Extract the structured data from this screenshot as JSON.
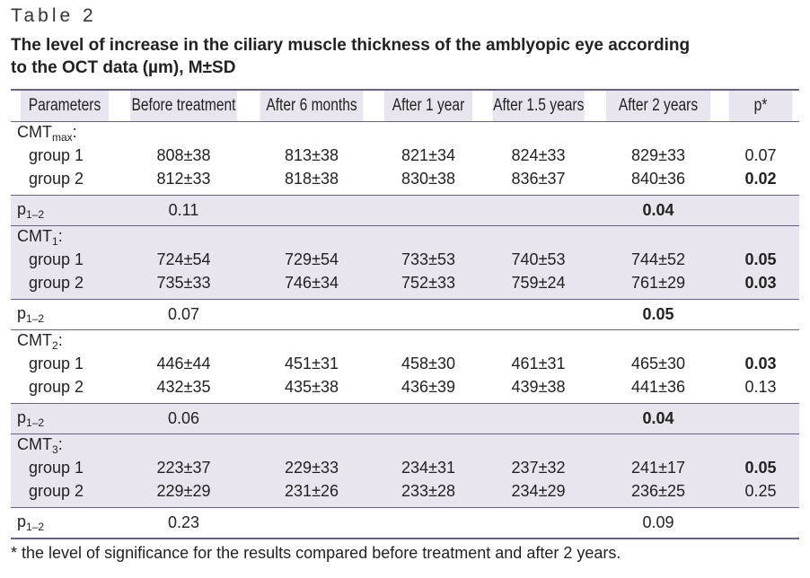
{
  "table_label": "Table 2",
  "caption_line1": "The level of increase in the ciliary muscle thickness of the amblyopic eye according",
  "caption_line2": "to the OCT data (µm), M±SD",
  "headers": [
    "Parameters",
    "Before treatment",
    "After 6 months",
    "After 1 year",
    "After 1.5 years",
    "After 2 years",
    "p*"
  ],
  "sections": [
    {
      "label_base": "CMT",
      "label_sub": "max",
      "label_suffix": ":",
      "rows": [
        {
          "label": "group 1",
          "values": [
            "808±38",
            "813±38",
            "821±34",
            "824±33",
            "829±33"
          ],
          "p": "0.07",
          "p_bold": false
        },
        {
          "label": "group 2",
          "values": [
            "812±33",
            "818±38",
            "830±38",
            "836±37",
            "840±36"
          ],
          "p": "0.02",
          "p_bold": true
        }
      ],
      "pvalue": {
        "label_base": "p",
        "label_sub": "1–2",
        "before": "0.11",
        "after2": "0.04",
        "after2_bold": true
      }
    },
    {
      "label_base": "CMT",
      "label_sub": "1",
      "label_suffix": ":",
      "rows": [
        {
          "label": "group 1",
          "values": [
            "724±54",
            "729±54",
            "733±53",
            "740±53",
            "744±52"
          ],
          "p": "0.05",
          "p_bold": true
        },
        {
          "label": "group 2",
          "values": [
            "735±33",
            "746±34",
            "752±33",
            "759±24",
            "761±29"
          ],
          "p": "0.03",
          "p_bold": true
        }
      ],
      "pvalue": {
        "label_base": "p",
        "label_sub": "1–2",
        "before": "0.07",
        "after2": "0.05",
        "after2_bold": true
      }
    },
    {
      "label_base": "CMT",
      "label_sub": "2",
      "label_suffix": ":",
      "rows": [
        {
          "label": "group 1",
          "values": [
            "446±44",
            "451±31",
            "458±30",
            "461±31",
            "465±30"
          ],
          "p": "0.03",
          "p_bold": true
        },
        {
          "label": "group 2",
          "values": [
            "432±35",
            "435±38",
            "436±39",
            "439±38",
            "441±36"
          ],
          "p": "0.13",
          "p_bold": false
        }
      ],
      "pvalue": {
        "label_base": "p",
        "label_sub": "1–2",
        "before": "0.06",
        "after2": "0.04",
        "after2_bold": true
      }
    },
    {
      "label_base": "CMT",
      "label_sub": "3",
      "label_suffix": ":",
      "rows": [
        {
          "label": "group 1",
          "values": [
            "223±37",
            "229±33",
            "234±31",
            "237±32",
            "241±17"
          ],
          "p": "0.05",
          "p_bold": true
        },
        {
          "label": "group 2",
          "values": [
            "229±29",
            "231±26",
            "233±28",
            "234±29",
            "236±25"
          ],
          "p": "0.25",
          "p_bold": false
        }
      ],
      "pvalue": {
        "label_base": "p",
        "label_sub": "1–2",
        "before": "0.23",
        "after2": "0.09",
        "after2_bold": false
      }
    }
  ],
  "footnote": "* the level of significance for the results compared before treatment and after 2 years.",
  "colors": {
    "rule": "#6a5f86",
    "shade": "#e8e5ef"
  }
}
